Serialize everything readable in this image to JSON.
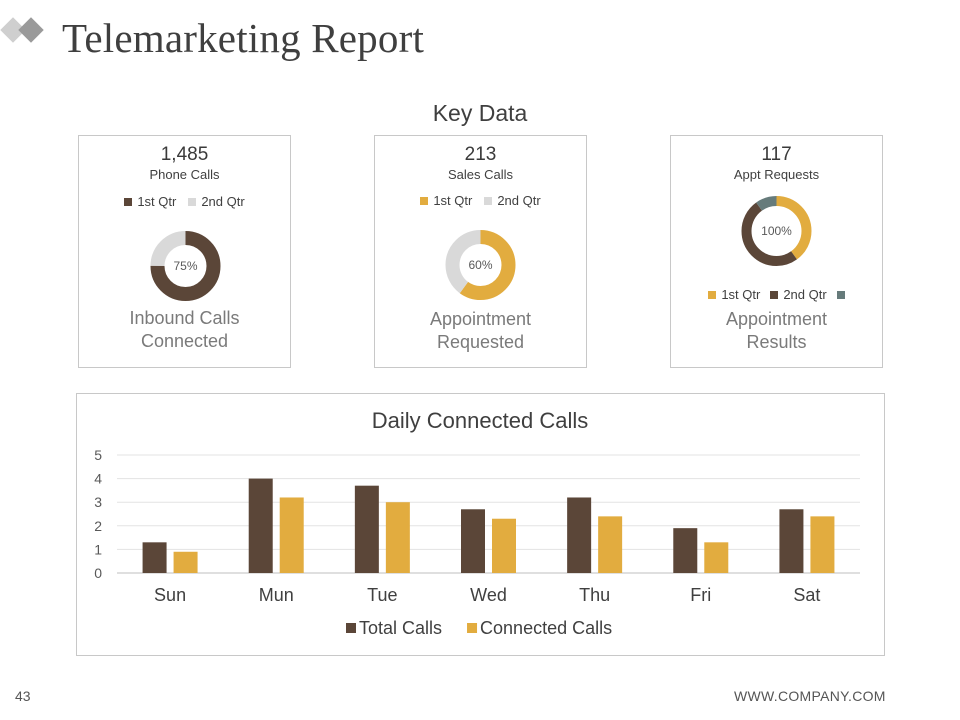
{
  "slide": {
    "title": "Telemarketing Report",
    "section_title": "Key Data",
    "page_number": "43",
    "website": "WWW.COMPANY.COM"
  },
  "colors": {
    "dark_brown": "#5b4638",
    "gold": "#e2ac3f",
    "light_gray": "#d9d9d9",
    "teal_gray": "#667b7b",
    "logo_gray": "#9a9a9a",
    "logo_light": "#cfcfcf"
  },
  "kpis": [
    {
      "value": "1,485",
      "label": "Phone Calls",
      "legend": [
        {
          "label": "1st Qtr",
          "color": "#5b4638"
        },
        {
          "label": "2nd Qtr",
          "color": "#d9d9d9"
        }
      ],
      "donut_label": "75%",
      "caption_line1": "Inbound Calls",
      "caption_line2": "Connected"
    },
    {
      "value": "213",
      "label": "Sales Calls",
      "legend": [
        {
          "label": "1st Qtr",
          "color": "#e2ac3f"
        },
        {
          "label": "2nd Qtr",
          "color": "#d9d9d9"
        }
      ],
      "donut_label": "60%",
      "caption_line1": "Appointment",
      "caption_line2": "Requested"
    },
    {
      "value": "117",
      "label": "Appt Requests",
      "legend": [
        {
          "label": "1st Qtr",
          "color": "#e2ac3f"
        },
        {
          "label": "2nd Qtr",
          "color": "#5b4638"
        },
        {
          "label": "",
          "color": "#667b7b"
        }
      ],
      "donut_label": "100%",
      "caption_line1": "Appointment",
      "caption_line2": "Results"
    }
  ],
  "chart_data": [
    {
      "type": "pie",
      "title": "Inbound Calls Connected",
      "categories": [
        "1st Qtr",
        "2nd Qtr"
      ],
      "values": [
        75,
        25
      ],
      "colors": [
        "#5b4638",
        "#d9d9d9"
      ],
      "center_label": "75%"
    },
    {
      "type": "pie",
      "title": "Appointment Requested",
      "categories": [
        "1st Qtr",
        "2nd Qtr"
      ],
      "values": [
        60,
        40
      ],
      "colors": [
        "#e2ac3f",
        "#d9d9d9"
      ],
      "center_label": "60%"
    },
    {
      "type": "pie",
      "title": "Appointment Results",
      "categories": [
        "1st Qtr",
        "2nd Qtr",
        ""
      ],
      "values": [
        40,
        50,
        10
      ],
      "colors": [
        "#e2ac3f",
        "#5b4638",
        "#667b7b"
      ],
      "center_label": "100%"
    },
    {
      "type": "bar",
      "title": "Daily Connected Calls",
      "categories": [
        "Sun",
        "Mun",
        "Tue",
        "Wed",
        "Thu",
        "Fri",
        "Sat"
      ],
      "series": [
        {
          "name": "Total Calls",
          "color": "#5b4638",
          "values": [
            1.3,
            4.0,
            3.7,
            2.7,
            3.2,
            1.9,
            2.7
          ]
        },
        {
          "name": "Connected Calls",
          "color": "#e2ac3f",
          "values": [
            0.9,
            3.2,
            3.0,
            2.3,
            2.4,
            1.3,
            2.4
          ]
        }
      ],
      "yticks": [
        "0",
        "1",
        "2",
        "3",
        "4",
        "5"
      ],
      "ylim": [
        0,
        5
      ],
      "grid": true,
      "legend": "bottom"
    }
  ]
}
